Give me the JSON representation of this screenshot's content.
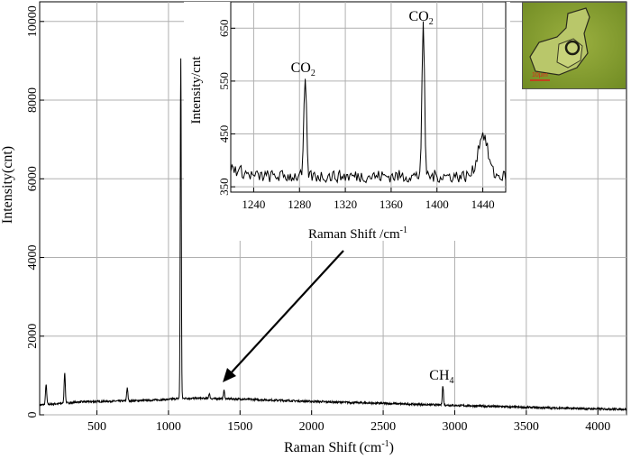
{
  "chart_data": [
    {
      "type": "line",
      "name_in_figure": "main",
      "xlabel": "Raman Shift",
      "xlabel_unit": "(cm",
      "xlabel_sup": "-1",
      "xlabel_close": ")",
      "ylabel": "Intensity(cnt)",
      "xlim": [
        100,
        4200
      ],
      "ylim": [
        0,
        10500
      ],
      "x_ticks": [
        500,
        1000,
        1500,
        2000,
        2500,
        3000,
        3500,
        4000
      ],
      "y_ticks": [
        0,
        2000,
        4000,
        6000,
        8000,
        10000
      ],
      "grid": true,
      "baseline": [
        [
          100,
          250
        ],
        [
          400,
          330
        ],
        [
          800,
          360
        ],
        [
          1000,
          390
        ],
        [
          1080,
          420
        ],
        [
          1200,
          420
        ],
        [
          1500,
          400
        ],
        [
          2000,
          340
        ],
        [
          2500,
          290
        ],
        [
          3000,
          240
        ],
        [
          3500,
          190
        ],
        [
          4000,
          150
        ],
        [
          4200,
          140
        ]
      ],
      "peaks": [
        {
          "x": 145,
          "y": 780
        },
        {
          "x": 275,
          "y": 1060
        },
        {
          "x": 712,
          "y": 690
        },
        {
          "x": 1086,
          "y": 9050
        },
        {
          "x": 1285,
          "y": 540
        },
        {
          "x": 1388,
          "y": 620
        },
        {
          "x": 2917,
          "y": 730
        }
      ],
      "annotations": [
        {
          "text": "CH",
          "sub": "4",
          "x": 2917,
          "y": 730
        }
      ]
    },
    {
      "type": "line",
      "name_in_figure": "inset",
      "xlabel": "Raman Shift /cm",
      "xlabel_sup": "-1",
      "ylabel": "Intensity/cnt",
      "xlim": [
        1220,
        1460
      ],
      "ylim": [
        340,
        700
      ],
      "x_ticks": [
        1240,
        1280,
        1320,
        1360,
        1400,
        1440
      ],
      "y_ticks": [
        350,
        450,
        550,
        650
      ],
      "grid": true,
      "baseline_level": 370,
      "peaks": [
        {
          "x": 1285,
          "y": 555
        },
        {
          "x": 1388,
          "y": 652
        },
        {
          "x": 1440,
          "y": 450
        }
      ],
      "annotations": [
        {
          "text": "CO",
          "sub": "2",
          "x": 1285,
          "y": 555
        },
        {
          "text": "CO",
          "sub": "2",
          "x": 1388,
          "y": 652
        }
      ]
    }
  ],
  "photo": {
    "scale_label": "10μm",
    "colors": {
      "background": "#7f9a2e",
      "crystal": "#b9c76a",
      "outline": "#2b2b1c",
      "scale": "#d9261c"
    }
  }
}
